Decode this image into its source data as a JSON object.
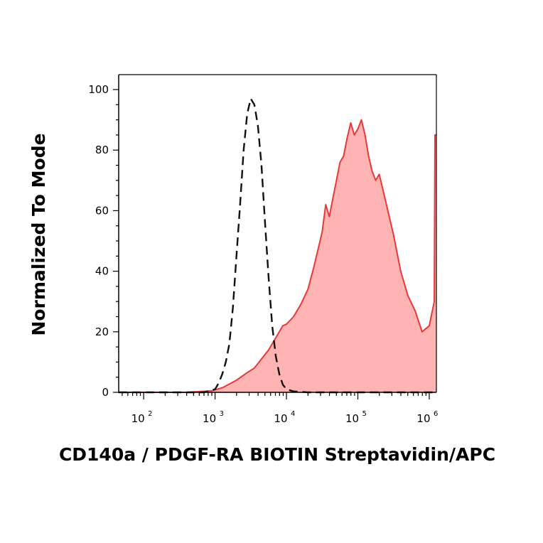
{
  "chart_data": {
    "type": "area",
    "title": "",
    "xlabel": "CD140a / PDGF-RA BIOTIN Streptavidin/APC",
    "ylabel": "Normalized To Mode",
    "xscale": "biexponential-log",
    "xlim_log10": [
      1.65,
      6.1
    ],
    "ylim": [
      0,
      105
    ],
    "yticks": [
      0,
      20,
      40,
      60,
      80,
      100
    ],
    "yticklabels": [
      "0",
      "20",
      "40",
      "60",
      "80",
      "100"
    ],
    "xticks": [
      2,
      3,
      4,
      5,
      6
    ],
    "xticklabels": [
      {
        "base": "10",
        "exp": "2"
      },
      {
        "base": "10",
        "exp": "3"
      },
      {
        "base": "10",
        "exp": "4"
      },
      {
        "base": "10",
        "exp": "5"
      },
      {
        "base": "10",
        "exp": "6"
      }
    ],
    "grid": false,
    "legend": "none",
    "series": [
      {
        "style": "filled",
        "color": "#e8393a",
        "fill": "#ffb3b3",
        "points": [
          [
            1.65,
            0
          ],
          [
            2.6,
            0
          ],
          [
            2.95,
            0.5
          ],
          [
            3.1,
            1.5
          ],
          [
            3.3,
            4
          ],
          [
            3.45,
            6.5
          ],
          [
            3.55,
            8
          ],
          [
            3.65,
            11
          ],
          [
            3.75,
            14
          ],
          [
            3.85,
            18
          ],
          [
            3.95,
            22
          ],
          [
            4.0,
            22.5
          ],
          [
            4.1,
            25
          ],
          [
            4.2,
            29
          ],
          [
            4.3,
            34
          ],
          [
            4.38,
            41
          ],
          [
            4.45,
            48
          ],
          [
            4.5,
            53
          ],
          [
            4.55,
            62
          ],
          [
            4.6,
            58
          ],
          [
            4.65,
            64
          ],
          [
            4.7,
            70
          ],
          [
            4.75,
            76
          ],
          [
            4.8,
            78
          ],
          [
            4.85,
            84
          ],
          [
            4.9,
            89
          ],
          [
            4.95,
            85
          ],
          [
            5.0,
            87
          ],
          [
            5.05,
            90
          ],
          [
            5.1,
            85
          ],
          [
            5.15,
            78
          ],
          [
            5.2,
            73
          ],
          [
            5.25,
            70
          ],
          [
            5.3,
            72
          ],
          [
            5.35,
            67
          ],
          [
            5.4,
            62
          ],
          [
            5.5,
            52
          ],
          [
            5.6,
            40
          ],
          [
            5.7,
            32
          ],
          [
            5.8,
            27
          ],
          [
            5.9,
            20
          ],
          [
            6.0,
            22
          ],
          [
            6.07,
            30
          ],
          [
            6.08,
            85
          ],
          [
            6.1,
            85
          ]
        ]
      },
      {
        "style": "dashed",
        "color": "#111111",
        "points": [
          [
            1.65,
            0
          ],
          [
            2.5,
            0
          ],
          [
            2.85,
            0
          ],
          [
            3.0,
            1
          ],
          [
            3.05,
            3
          ],
          [
            3.1,
            6
          ],
          [
            3.15,
            10
          ],
          [
            3.2,
            16
          ],
          [
            3.25,
            28
          ],
          [
            3.3,
            45
          ],
          [
            3.35,
            62
          ],
          [
            3.4,
            80
          ],
          [
            3.45,
            92
          ],
          [
            3.5,
            97
          ],
          [
            3.55,
            95
          ],
          [
            3.6,
            88
          ],
          [
            3.65,
            75
          ],
          [
            3.7,
            56
          ],
          [
            3.75,
            38
          ],
          [
            3.8,
            22
          ],
          [
            3.85,
            12
          ],
          [
            3.9,
            6
          ],
          [
            3.95,
            2.5
          ],
          [
            4.0,
            1
          ],
          [
            4.1,
            0.3
          ],
          [
            4.3,
            0
          ],
          [
            5.0,
            0
          ],
          [
            6.1,
            0
          ]
        ]
      }
    ]
  }
}
